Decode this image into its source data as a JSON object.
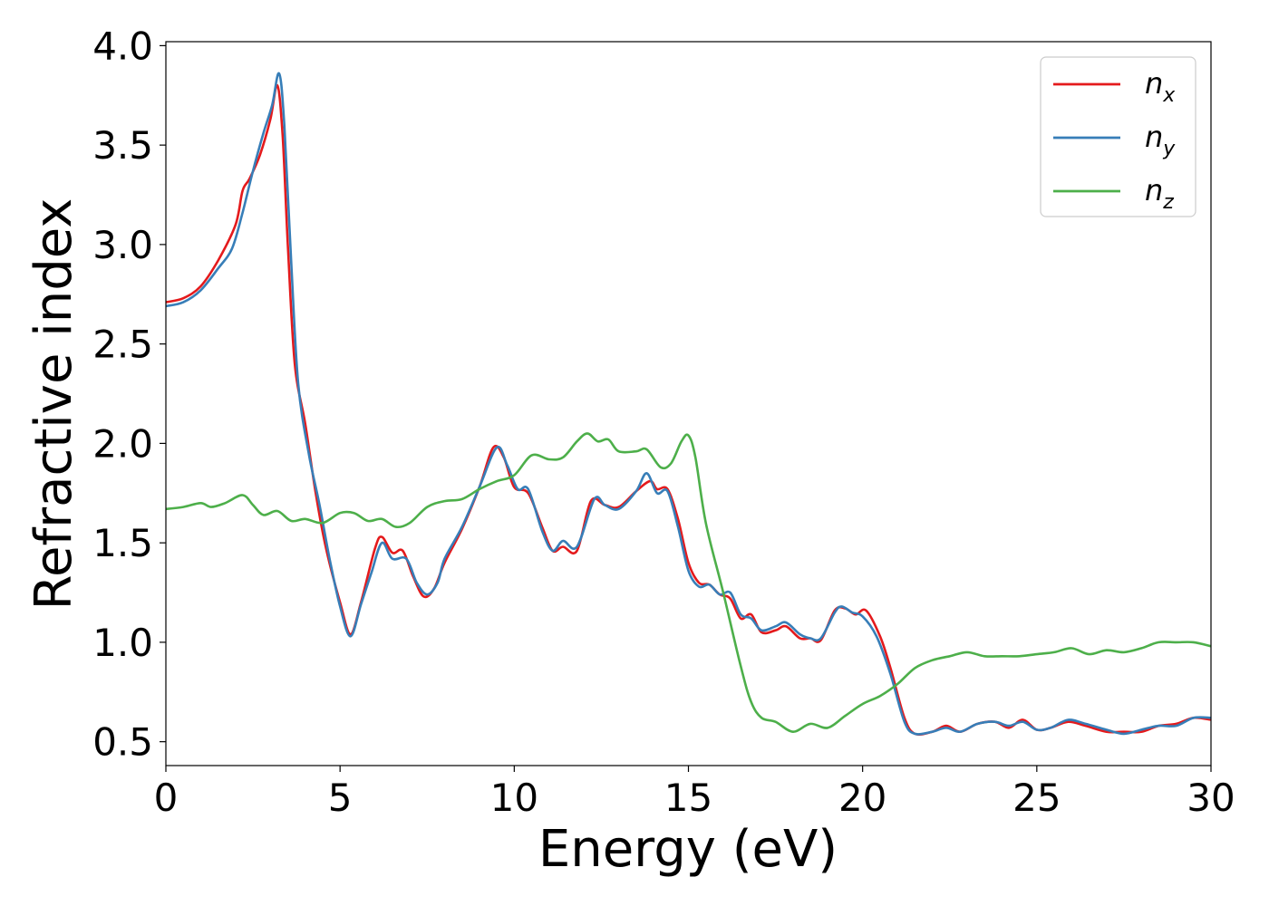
{
  "chart_data": {
    "type": "line",
    "xlabel": "Energy (eV)",
    "ylabel": "Refractive index",
    "xlim": [
      0,
      30
    ],
    "ylim": [
      0.38,
      4.02
    ],
    "xticks": [
      0,
      5,
      10,
      15,
      20,
      25,
      30
    ],
    "xtick_labels": [
      "0",
      "5",
      "10",
      "15",
      "20",
      "25",
      "30"
    ],
    "yticks": [
      0.5,
      1.0,
      1.5,
      2.0,
      2.5,
      3.0,
      3.5,
      4.0
    ],
    "ytick_labels": [
      "0.5",
      "1.0",
      "1.5",
      "2.0",
      "2.5",
      "3.0",
      "3.5",
      "4.0"
    ],
    "grid": false,
    "legend_position": "top-right",
    "series": [
      {
        "name": "n",
        "subscript": "x",
        "color": "#e41a1c",
        "points": [
          [
            0,
            2.71
          ],
          [
            0.5,
            2.73
          ],
          [
            1,
            2.79
          ],
          [
            1.5,
            2.92
          ],
          [
            2,
            3.1
          ],
          [
            2.2,
            3.27
          ],
          [
            2.4,
            3.33
          ],
          [
            2.7,
            3.45
          ],
          [
            3,
            3.63
          ],
          [
            3.2,
            3.8
          ],
          [
            3.35,
            3.55
          ],
          [
            3.5,
            3.0
          ],
          [
            3.7,
            2.4
          ],
          [
            4,
            2.1
          ],
          [
            4.3,
            1.75
          ],
          [
            4.6,
            1.47
          ],
          [
            5,
            1.2
          ],
          [
            5.3,
            1.04
          ],
          [
            5.6,
            1.2
          ],
          [
            6,
            1.47
          ],
          [
            6.2,
            1.53
          ],
          [
            6.5,
            1.45
          ],
          [
            6.8,
            1.46
          ],
          [
            7.1,
            1.33
          ],
          [
            7.4,
            1.23
          ],
          [
            7.7,
            1.27
          ],
          [
            8,
            1.4
          ],
          [
            8.5,
            1.57
          ],
          [
            9,
            1.78
          ],
          [
            9.4,
            1.98
          ],
          [
            9.7,
            1.93
          ],
          [
            10,
            1.78
          ],
          [
            10.4,
            1.75
          ],
          [
            10.8,
            1.58
          ],
          [
            11.1,
            1.46
          ],
          [
            11.4,
            1.48
          ],
          [
            11.8,
            1.46
          ],
          [
            12.2,
            1.71
          ],
          [
            12.6,
            1.69
          ],
          [
            13,
            1.68
          ],
          [
            13.5,
            1.76
          ],
          [
            13.9,
            1.81
          ],
          [
            14.1,
            1.77
          ],
          [
            14.4,
            1.77
          ],
          [
            14.7,
            1.62
          ],
          [
            15,
            1.4
          ],
          [
            15.3,
            1.3
          ],
          [
            15.6,
            1.29
          ],
          [
            15.9,
            1.24
          ],
          [
            16.2,
            1.22
          ],
          [
            16.5,
            1.12
          ],
          [
            16.8,
            1.14
          ],
          [
            17.1,
            1.05
          ],
          [
            17.5,
            1.06
          ],
          [
            17.8,
            1.08
          ],
          [
            18.2,
            1.02
          ],
          [
            18.5,
            1.02
          ],
          [
            18.8,
            1.01
          ],
          [
            19.2,
            1.16
          ],
          [
            19.5,
            1.17
          ],
          [
            19.8,
            1.14
          ],
          [
            20.1,
            1.16
          ],
          [
            20.5,
            1.03
          ],
          [
            20.8,
            0.87
          ],
          [
            21.2,
            0.62
          ],
          [
            21.5,
            0.54
          ],
          [
            22,
            0.55
          ],
          [
            22.4,
            0.58
          ],
          [
            22.8,
            0.55
          ],
          [
            23.3,
            0.59
          ],
          [
            23.8,
            0.6
          ],
          [
            24.2,
            0.57
          ],
          [
            24.6,
            0.61
          ],
          [
            25,
            0.56
          ],
          [
            25.4,
            0.57
          ],
          [
            25.9,
            0.6
          ],
          [
            26.4,
            0.58
          ],
          [
            27,
            0.55
          ],
          [
            27.5,
            0.55
          ],
          [
            28,
            0.55
          ],
          [
            28.5,
            0.58
          ],
          [
            29,
            0.59
          ],
          [
            29.5,
            0.62
          ],
          [
            30,
            0.61
          ]
        ]
      },
      {
        "name": "n",
        "subscript": "y",
        "color": "#377eb8",
        "points": [
          [
            0,
            2.69
          ],
          [
            0.5,
            2.71
          ],
          [
            1,
            2.77
          ],
          [
            1.5,
            2.88
          ],
          [
            1.9,
            2.98
          ],
          [
            2.2,
            3.16
          ],
          [
            2.5,
            3.37
          ],
          [
            2.8,
            3.56
          ],
          [
            3.05,
            3.7
          ],
          [
            3.25,
            3.86
          ],
          [
            3.4,
            3.6
          ],
          [
            3.6,
            2.9
          ],
          [
            3.8,
            2.3
          ],
          [
            4.1,
            1.95
          ],
          [
            4.4,
            1.7
          ],
          [
            4.7,
            1.42
          ],
          [
            5,
            1.18
          ],
          [
            5.3,
            1.03
          ],
          [
            5.6,
            1.19
          ],
          [
            5.9,
            1.35
          ],
          [
            6.2,
            1.5
          ],
          [
            6.5,
            1.42
          ],
          [
            6.9,
            1.42
          ],
          [
            7.2,
            1.3
          ],
          [
            7.5,
            1.24
          ],
          [
            7.8,
            1.3
          ],
          [
            8,
            1.42
          ],
          [
            8.5,
            1.58
          ],
          [
            9,
            1.78
          ],
          [
            9.5,
            1.98
          ],
          [
            9.8,
            1.89
          ],
          [
            10.1,
            1.77
          ],
          [
            10.4,
            1.77
          ],
          [
            10.8,
            1.56
          ],
          [
            11.1,
            1.46
          ],
          [
            11.4,
            1.51
          ],
          [
            11.8,
            1.48
          ],
          [
            12.3,
            1.72
          ],
          [
            12.6,
            1.69
          ],
          [
            13,
            1.67
          ],
          [
            13.5,
            1.76
          ],
          [
            13.8,
            1.85
          ],
          [
            14.1,
            1.75
          ],
          [
            14.4,
            1.76
          ],
          [
            14.7,
            1.58
          ],
          [
            15,
            1.36
          ],
          [
            15.3,
            1.28
          ],
          [
            15.6,
            1.29
          ],
          [
            15.9,
            1.24
          ],
          [
            16.2,
            1.25
          ],
          [
            16.5,
            1.14
          ],
          [
            16.8,
            1.12
          ],
          [
            17.1,
            1.06
          ],
          [
            17.5,
            1.08
          ],
          [
            17.8,
            1.1
          ],
          [
            18.2,
            1.04
          ],
          [
            18.5,
            1.02
          ],
          [
            18.8,
            1.02
          ],
          [
            19.2,
            1.15
          ],
          [
            19.4,
            1.18
          ],
          [
            19.7,
            1.15
          ],
          [
            20,
            1.13
          ],
          [
            20.4,
            1.03
          ],
          [
            20.8,
            0.84
          ],
          [
            21.2,
            0.6
          ],
          [
            21.5,
            0.54
          ],
          [
            22,
            0.55
          ],
          [
            22.4,
            0.57
          ],
          [
            22.8,
            0.55
          ],
          [
            23.3,
            0.59
          ],
          [
            23.8,
            0.6
          ],
          [
            24.2,
            0.58
          ],
          [
            24.6,
            0.6
          ],
          [
            25,
            0.56
          ],
          [
            25.4,
            0.57
          ],
          [
            25.9,
            0.61
          ],
          [
            26.4,
            0.59
          ],
          [
            27,
            0.56
          ],
          [
            27.5,
            0.54
          ],
          [
            28,
            0.56
          ],
          [
            28.5,
            0.58
          ],
          [
            29,
            0.58
          ],
          [
            29.5,
            0.62
          ],
          [
            30,
            0.62
          ]
        ]
      },
      {
        "name": "n",
        "subscript": "z",
        "color": "#4daf4a",
        "points": [
          [
            0,
            1.67
          ],
          [
            0.5,
            1.68
          ],
          [
            1,
            1.7
          ],
          [
            1.3,
            1.68
          ],
          [
            1.7,
            1.7
          ],
          [
            2.2,
            1.74
          ],
          [
            2.5,
            1.69
          ],
          [
            2.8,
            1.64
          ],
          [
            3.2,
            1.66
          ],
          [
            3.6,
            1.61
          ],
          [
            4,
            1.62
          ],
          [
            4.5,
            1.6
          ],
          [
            5,
            1.65
          ],
          [
            5.4,
            1.65
          ],
          [
            5.8,
            1.61
          ],
          [
            6.2,
            1.62
          ],
          [
            6.6,
            1.58
          ],
          [
            7,
            1.6
          ],
          [
            7.5,
            1.68
          ],
          [
            8,
            1.71
          ],
          [
            8.5,
            1.72
          ],
          [
            9,
            1.77
          ],
          [
            9.5,
            1.81
          ],
          [
            10,
            1.84
          ],
          [
            10.5,
            1.94
          ],
          [
            11,
            1.92
          ],
          [
            11.4,
            1.93
          ],
          [
            11.8,
            2.01
          ],
          [
            12.1,
            2.05
          ],
          [
            12.4,
            2.01
          ],
          [
            12.7,
            2.02
          ],
          [
            13,
            1.96
          ],
          [
            13.5,
            1.96
          ],
          [
            13.8,
            1.97
          ],
          [
            14.2,
            1.88
          ],
          [
            14.5,
            1.9
          ],
          [
            14.8,
            2.01
          ],
          [
            15,
            2.04
          ],
          [
            15.2,
            1.93
          ],
          [
            15.5,
            1.6
          ],
          [
            16,
            1.25
          ],
          [
            16.5,
            0.88
          ],
          [
            16.8,
            0.7
          ],
          [
            17.1,
            0.62
          ],
          [
            17.5,
            0.6
          ],
          [
            18,
            0.55
          ],
          [
            18.5,
            0.59
          ],
          [
            19,
            0.57
          ],
          [
            19.5,
            0.63
          ],
          [
            20,
            0.69
          ],
          [
            20.5,
            0.73
          ],
          [
            21,
            0.79
          ],
          [
            21.5,
            0.87
          ],
          [
            22,
            0.91
          ],
          [
            22.5,
            0.93
          ],
          [
            23,
            0.95
          ],
          [
            23.5,
            0.93
          ],
          [
            24,
            0.93
          ],
          [
            24.5,
            0.93
          ],
          [
            25,
            0.94
          ],
          [
            25.5,
            0.95
          ],
          [
            26,
            0.97
          ],
          [
            26.5,
            0.94
          ],
          [
            27,
            0.96
          ],
          [
            27.5,
            0.95
          ],
          [
            28,
            0.97
          ],
          [
            28.5,
            1.0
          ],
          [
            29,
            1.0
          ],
          [
            29.5,
            1.0
          ],
          [
            30,
            0.98
          ]
        ]
      }
    ]
  }
}
